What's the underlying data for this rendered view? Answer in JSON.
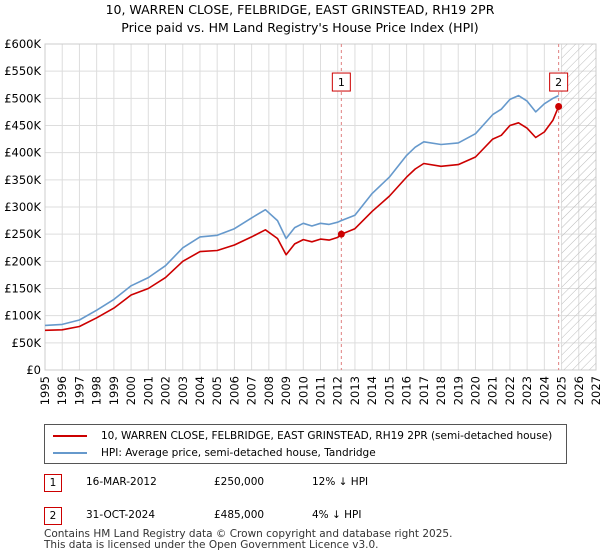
{
  "title": "10, WARREN CLOSE, FELBRIDGE, EAST GRINSTEAD, RH19 2PR",
  "subtitle": "Price paid vs. HM Land Registry's House Price Index (HPI)",
  "colors": {
    "property": "#cc0000",
    "hpi": "#6699cc",
    "grid": "#dddddd",
    "projection": "#aaaaaa"
  },
  "legend": {
    "property_label": "10, WARREN CLOSE, FELBRIDGE, EAST GRINSTEAD, RH19 2PR (semi-detached house)",
    "hpi_label": "HPI: Average price, semi-detached house, Tandridge"
  },
  "sales": [
    {
      "id": "1",
      "date": "16-MAR-2012",
      "price": "£250,000",
      "hpi_diff": "12% ↓ HPI"
    },
    {
      "id": "2",
      "date": "31-OCT-2024",
      "price": "£485,000",
      "hpi_diff": "4% ↓ HPI"
    }
  ],
  "footer": {
    "line1": "Contains HM Land Registry data © Crown copyright and database right 2025.",
    "line2": "This data is licensed under the Open Government Licence v3.0."
  },
  "chart_data": {
    "type": "line",
    "xlim": [
      1995,
      2027
    ],
    "ylim": [
      0,
      600000
    ],
    "x_ticks": [
      "1995",
      "1996",
      "1997",
      "1998",
      "1999",
      "2000",
      "2001",
      "2002",
      "2003",
      "2004",
      "2005",
      "2006",
      "2007",
      "2008",
      "2009",
      "2010",
      "2011",
      "2012",
      "2013",
      "2014",
      "2015",
      "2016",
      "2017",
      "2018",
      "2019",
      "2020",
      "2021",
      "2022",
      "2023",
      "2024",
      "2025",
      "2026",
      "2027"
    ],
    "y_ticks": [
      {
        "value": 0,
        "label": "£0"
      },
      {
        "value": 50000,
        "label": "£50K"
      },
      {
        "value": 100000,
        "label": "£100K"
      },
      {
        "value": 150000,
        "label": "£150K"
      },
      {
        "value": 200000,
        "label": "£200K"
      },
      {
        "value": 250000,
        "label": "£250K"
      },
      {
        "value": 300000,
        "label": "£300K"
      },
      {
        "value": 350000,
        "label": "£350K"
      },
      {
        "value": 400000,
        "label": "£400K"
      },
      {
        "value": 450000,
        "label": "£450K"
      },
      {
        "value": 500000,
        "label": "£500K"
      },
      {
        "value": 550000,
        "label": "£550K"
      },
      {
        "value": 600000,
        "label": "£600K"
      }
    ],
    "projection_start": 2025.0,
    "series": [
      {
        "name": "HPI: Average price, semi-detached house, Tandridge",
        "color": "#6699cc",
        "x": [
          1995.0,
          1996.0,
          1997.0,
          1998.0,
          1999.0,
          2000.0,
          2001.0,
          2002.0,
          2003.0,
          2004.0,
          2005.0,
          2006.0,
          2007.0,
          2007.8,
          2008.5,
          2009.0,
          2009.5,
          2010.0,
          2010.5,
          2011.0,
          2011.5,
          2012.0,
          2012.2,
          2013.0,
          2014.0,
          2015.0,
          2016.0,
          2016.5,
          2017.0,
          2018.0,
          2019.0,
          2020.0,
          2021.0,
          2021.5,
          2022.0,
          2022.5,
          2023.0,
          2023.5,
          2024.0,
          2024.5,
          2024.83
        ],
        "y": [
          82000,
          84000,
          92000,
          110000,
          130000,
          155000,
          170000,
          192000,
          225000,
          245000,
          248000,
          260000,
          280000,
          295000,
          275000,
          242000,
          262000,
          270000,
          265000,
          270000,
          268000,
          272000,
          275000,
          285000,
          325000,
          355000,
          395000,
          410000,
          420000,
          415000,
          418000,
          435000,
          470000,
          480000,
          498000,
          505000,
          495000,
          475000,
          490000,
          500000,
          505000
        ]
      },
      {
        "name": "10, WARREN CLOSE, FELBRIDGE, EAST GRINSTEAD, RH19 2PR (semi-detached house)",
        "color": "#cc0000",
        "x": [
          1995.0,
          1996.0,
          1997.0,
          1998.0,
          1999.0,
          2000.0,
          2001.0,
          2002.0,
          2003.0,
          2004.0,
          2005.0,
          2006.0,
          2007.0,
          2007.8,
          2008.5,
          2009.0,
          2009.5,
          2010.0,
          2010.5,
          2011.0,
          2011.5,
          2012.0,
          2012.21,
          2013.0,
          2014.0,
          2015.0,
          2016.0,
          2016.5,
          2017.0,
          2018.0,
          2019.0,
          2020.0,
          2021.0,
          2021.5,
          2022.0,
          2022.5,
          2023.0,
          2023.5,
          2024.0,
          2024.5,
          2024.83
        ],
        "y": [
          73000,
          74000,
          80000,
          96000,
          114000,
          138000,
          150000,
          170000,
          200000,
          218000,
          220000,
          230000,
          245000,
          258000,
          242000,
          212000,
          232000,
          240000,
          236000,
          241000,
          239000,
          244000,
          250000,
          260000,
          292000,
          320000,
          355000,
          370000,
          380000,
          375000,
          378000,
          392000,
          425000,
          432000,
          450000,
          455000,
          445000,
          428000,
          438000,
          460000,
          485000
        ]
      }
    ],
    "annotations": [
      {
        "label": "1",
        "x": 2012.21,
        "y": 250000
      },
      {
        "label": "2",
        "x": 2024.83,
        "y": 485000
      }
    ]
  }
}
